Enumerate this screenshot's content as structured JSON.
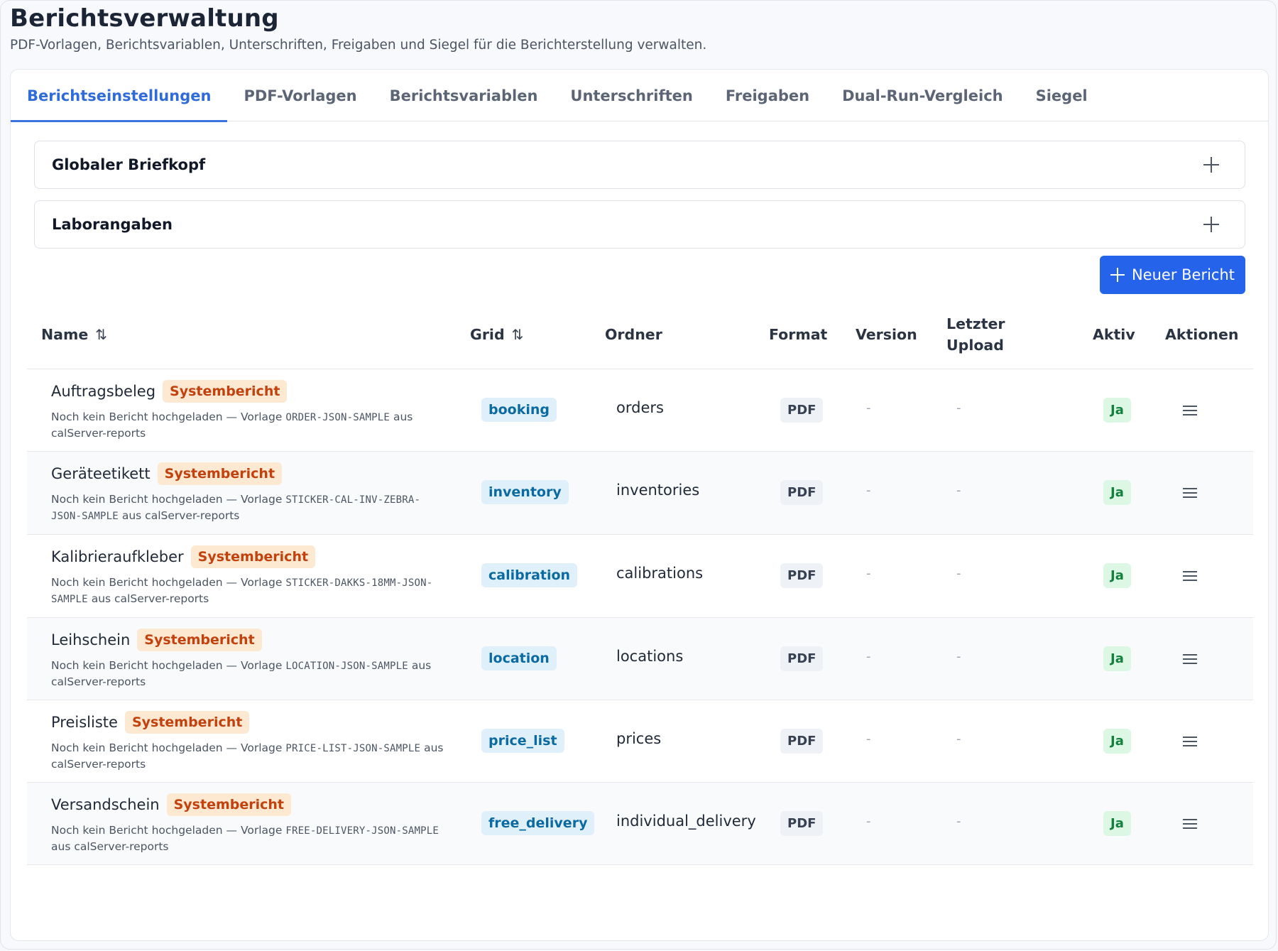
{
  "page": {
    "title": "Berichtsverwaltung",
    "subtitle": "PDF-Vorlagen, Berichtsvariablen, Unterschriften, Freigaben und Siegel für die Berichterstellung verwalten."
  },
  "tabs": [
    {
      "label": "Berichtseinstellungen",
      "active": true
    },
    {
      "label": "PDF-Vorlagen",
      "active": false
    },
    {
      "label": "Berichtsvariablen",
      "active": false
    },
    {
      "label": "Unterschriften",
      "active": false
    },
    {
      "label": "Freigaben",
      "active": false
    },
    {
      "label": "Dual-Run-Vergleich",
      "active": false
    },
    {
      "label": "Siegel",
      "active": false
    }
  ],
  "panels": [
    {
      "title": "Globaler Briefkopf",
      "icon": "plus-icon"
    },
    {
      "title": "Laborangaben",
      "icon": "plus-icon"
    }
  ],
  "actions": {
    "new_report_label": "Neuer Bericht"
  },
  "table": {
    "headers": {
      "name": "Name",
      "grid": "Grid",
      "folder": "Ordner",
      "format": "Format",
      "version": "Version",
      "last_upload_1": "Letzter",
      "last_upload_2": "Upload",
      "active": "Aktiv",
      "actions": "Aktionen"
    },
    "sort_icon": "⇅",
    "rows": [
      {
        "name": "Auftragsbeleg",
        "badge": "Systembericht",
        "desc_pre": "Noch kein Bericht hochgeladen — Vorlage ",
        "desc_code": "ORDER-JSON-SAMPLE",
        "desc_post": " aus calServer-reports",
        "grid": "booking",
        "folder": "orders",
        "format": "PDF",
        "version": "-",
        "last_upload": "-",
        "active": "Ja"
      },
      {
        "name": "Geräteetikett",
        "badge": "Systembericht",
        "desc_pre": "Noch kein Bericht hochgeladen — Vorlage ",
        "desc_code": "STICKER-CAL-INV-ZEBRA-JSON-SAMPLE",
        "desc_post": " aus calServer-reports",
        "grid": "inventory",
        "folder": "inventories",
        "format": "PDF",
        "version": "-",
        "last_upload": "-",
        "active": "Ja"
      },
      {
        "name": "Kalibrieraufkleber",
        "badge": "Systembericht",
        "desc_pre": "Noch kein Bericht hochgeladen — Vorlage ",
        "desc_code": "STICKER-DAKKS-18MM-JSON-SAMPLE",
        "desc_post": " aus calServer-reports",
        "grid": "calibration",
        "folder": "calibrations",
        "format": "PDF",
        "version": "-",
        "last_upload": "-",
        "active": "Ja"
      },
      {
        "name": "Leihschein",
        "badge": "Systembericht",
        "desc_pre": "Noch kein Bericht hochgeladen — Vorlage ",
        "desc_code": "LOCATION-JSON-SAMPLE",
        "desc_post": " aus calServer-reports",
        "grid": "location",
        "folder": "locations",
        "format": "PDF",
        "version": "-",
        "last_upload": "-",
        "active": "Ja"
      },
      {
        "name": "Preisliste",
        "badge": "Systembericht",
        "desc_pre": "Noch kein Bericht hochgeladen — Vorlage ",
        "desc_code": "PRICE-LIST-JSON-SAMPLE",
        "desc_post": " aus calServer-reports",
        "grid": "price_list",
        "folder": "prices",
        "format": "PDF",
        "version": "-",
        "last_upload": "-",
        "active": "Ja"
      },
      {
        "name": "Versandschein",
        "badge": "Systembericht",
        "desc_pre": "Noch kein Bericht hochgeladen — Vorlage ",
        "desc_code": "FREE-DELIVERY-JSON-SAMPLE",
        "desc_post": " aus calServer-reports",
        "grid": "free_delivery",
        "folder": "individual_delivery",
        "format": "PDF",
        "version": "-",
        "last_upload": "-",
        "active": "Ja"
      }
    ]
  },
  "colors": {
    "accent": "#2563eb",
    "active_tab": "#2f6bd9",
    "system_badge_bg": "#fde8d2",
    "system_badge_text": "#c2410c",
    "grid_badge_bg": "#e0f0fb",
    "grid_badge_text": "#0a6aa1",
    "yes_badge_bg": "#dcf7e4",
    "yes_badge_text": "#15803d"
  }
}
